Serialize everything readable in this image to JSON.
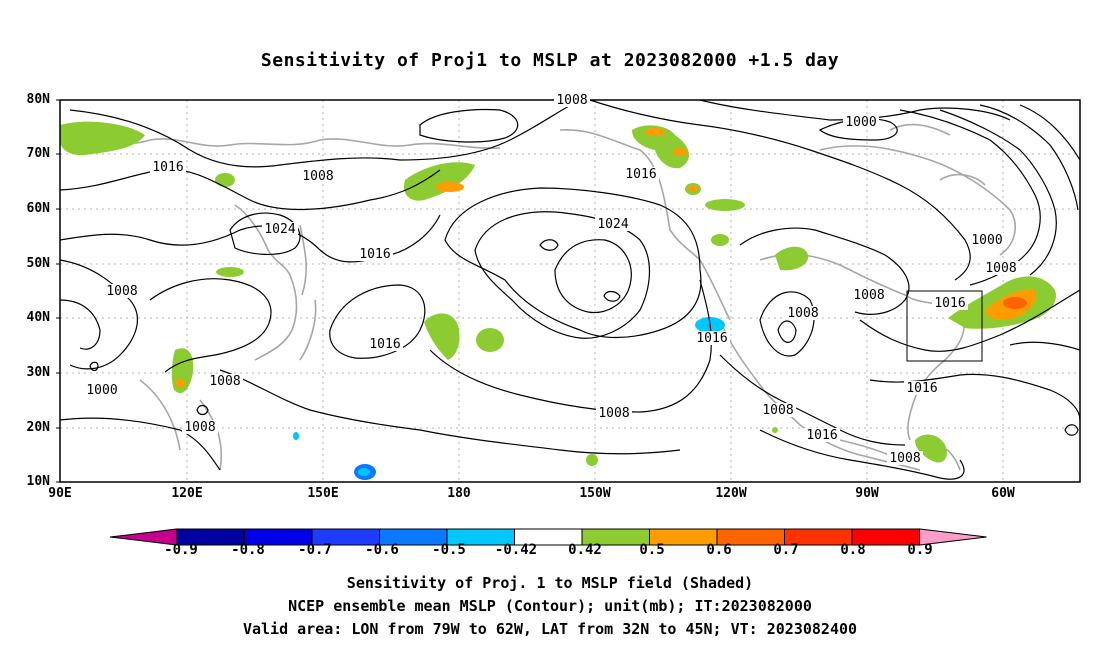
{
  "title": "Sensitivity of Proj1 to MSLP at 2023082000 +1.5 day",
  "lat_labels": [
    "80N",
    "70N",
    "60N",
    "50N",
    "40N",
    "30N",
    "20N",
    "10N"
  ],
  "lon_labels": [
    "90E",
    "120E",
    "150E",
    "180",
    "150W",
    "120W",
    "90W",
    "60W"
  ],
  "contour_labels": [
    "1008",
    "1000",
    "1016",
    "1024",
    "1008",
    "1016",
    "1024",
    "1016",
    "1008",
    "1016",
    "1008",
    "1000",
    "1008",
    "1008",
    "1016",
    "1008",
    "1000",
    "1008",
    "1016",
    "1008",
    "1008",
    "1016",
    "1008",
    "1016"
  ],
  "colorbar": {
    "labels": [
      "-0.9",
      "-0.8",
      "-0.7",
      "-0.6",
      "-0.5",
      "-0.42",
      "0.42",
      "0.5",
      "0.6",
      "0.7",
      "0.8",
      "0.9"
    ],
    "colors": [
      "#c4008c",
      "#0000a0",
      "#0000e6",
      "#1e3cff",
      "#0a78ff",
      "#00c8ff",
      "#ffffff",
      "#8ccc32",
      "#ff9c00",
      "#ff6400",
      "#ff3200",
      "#ff0000",
      "#ff9cc8"
    ]
  },
  "footer": {
    "line1": "Sensitivity of Proj. 1 to MSLP field (Shaded)",
    "line2": "NCEP ensemble mean MSLP (Contour); unit(mb); IT:2023082000",
    "line3": "Valid area: LON from 79W to 62W, LAT from 32N to 45N; VT: 2023082400"
  }
}
